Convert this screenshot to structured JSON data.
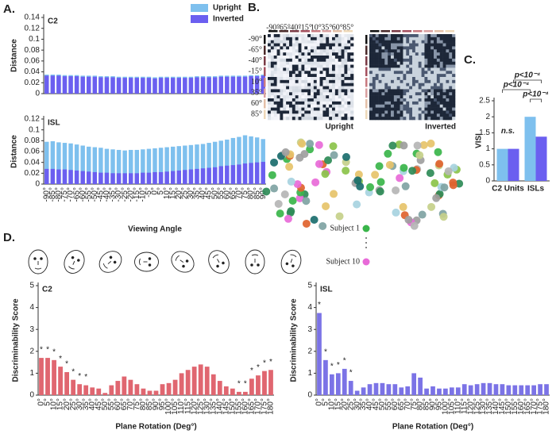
{
  "panel_labels": [
    "A.",
    "B.",
    "C.",
    "D."
  ],
  "chart_data": [
    {
      "type": "bar",
      "title": "C2",
      "ylabel": "Distance",
      "bar_mode": "overlay",
      "legend": "upper right",
      "series": [
        {
          "name": "Upright",
          "color": "#7ec0ee",
          "values": [
            0.035,
            0.035,
            0.035,
            0.034,
            0.034,
            0.034,
            0.033,
            0.033,
            0.033,
            0.032,
            0.032,
            0.032,
            0.031,
            0.031,
            0.031,
            0.031,
            0.031,
            0.031,
            0.03,
            0.031,
            0.031,
            0.031,
            0.031,
            0.031,
            0.031,
            0.032,
            0.032,
            0.032,
            0.032,
            0.033,
            0.033,
            0.033,
            0.033,
            0.033,
            0.034,
            0.034,
            0.035
          ]
        },
        {
          "name": "Inverted",
          "color": "#6b5ff0",
          "values": [
            0.033,
            0.033,
            0.033,
            0.032,
            0.032,
            0.032,
            0.031,
            0.031,
            0.031,
            0.03,
            0.03,
            0.03,
            0.029,
            0.029,
            0.029,
            0.029,
            0.029,
            0.029,
            0.028,
            0.029,
            0.029,
            0.029,
            0.029,
            0.029,
            0.029,
            0.03,
            0.03,
            0.03,
            0.03,
            0.031,
            0.031,
            0.031,
            0.031,
            0.031,
            0.032,
            0.032,
            0.033
          ]
        }
      ],
      "ylim": [
        0,
        0.14
      ],
      "yticks": [
        0,
        0.02,
        0.04,
        0.06,
        0.08,
        0.1,
        0.12,
        0.14
      ]
    },
    {
      "type": "bar",
      "title": "ISL",
      "ylabel": "Distance",
      "xlabel": "Viewing Angle",
      "bar_mode": "overlay",
      "categories": [
        "-90°",
        "-85°",
        "-80°",
        "-75°",
        "-70°",
        "-65°",
        "-60°",
        "-55°",
        "-50°",
        "-45°",
        "-40°",
        "-35°",
        "-30°",
        "-25°",
        "-20°",
        "-15°",
        "-10°",
        "-5°",
        "0°",
        "5°",
        "10°",
        "15°",
        "20°",
        "25°",
        "30°",
        "35°",
        "40°",
        "45°",
        "50°",
        "55°",
        "60°",
        "65°",
        "70°",
        "75°",
        "80°",
        "85°",
        "90°"
      ],
      "series": [
        {
          "color": "#7ec0ee",
          "values": [
            0.078,
            0.079,
            0.077,
            0.076,
            0.075,
            0.073,
            0.071,
            0.069,
            0.068,
            0.067,
            0.065,
            0.064,
            0.063,
            0.062,
            0.063,
            0.063,
            0.064,
            0.065,
            0.066,
            0.067,
            0.068,
            0.069,
            0.07,
            0.071,
            0.072,
            0.073,
            0.074,
            0.076,
            0.078,
            0.08,
            0.082,
            0.085,
            0.087,
            0.09,
            0.088,
            0.086,
            0.083
          ]
        },
        {
          "color": "#6b5ff0",
          "values": [
            0.028,
            0.028,
            0.027,
            0.027,
            0.026,
            0.025,
            0.024,
            0.023,
            0.022,
            0.021,
            0.021,
            0.02,
            0.02,
            0.02,
            0.02,
            0.02,
            0.021,
            0.021,
            0.022,
            0.022,
            0.023,
            0.024,
            0.025,
            0.026,
            0.027,
            0.028,
            0.029,
            0.03,
            0.031,
            0.033,
            0.034,
            0.035,
            0.036,
            0.038,
            0.039,
            0.04,
            0.041
          ]
        }
      ],
      "ylim": [
        0,
        0.12
      ],
      "yticks": [
        0,
        0.02,
        0.04,
        0.06,
        0.08,
        0.1,
        0.12
      ]
    },
    {
      "type": "bar",
      "ylabel": "VISI",
      "bar_mode": "group",
      "categories": [
        "C2 Units",
        "ISLs"
      ],
      "series": [
        {
          "color": "#7ec0ee",
          "values": [
            1.0,
            2.0
          ]
        },
        {
          "color": "#6b5ff0",
          "values": [
            1.0,
            1.38
          ]
        }
      ],
      "annotations": [
        "n.s.",
        "p<10⁻⁴",
        "p<10⁻⁴",
        "p<10⁻⁴"
      ],
      "ylim": [
        0,
        2.5
      ],
      "yticks": [
        0,
        0.5,
        1,
        1.5,
        2,
        2.5
      ]
    },
    {
      "type": "bar",
      "title": "C2",
      "ylabel": "Discriminability Score",
      "xlabel": "Plane Rotation (Deg°)",
      "color": "#e06670",
      "categories": [
        "0°",
        "5°",
        "10°",
        "15°",
        "20°",
        "25°",
        "30°",
        "35°",
        "40°",
        "45°",
        "50°",
        "55°",
        "60°",
        "65°",
        "70°",
        "75°",
        "80°",
        "85°",
        "90°",
        "95°",
        "100°",
        "105°",
        "110°",
        "115°",
        "120°",
        "125°",
        "130°",
        "135°",
        "140°",
        "145°",
        "150°",
        "155°",
        "160°",
        "165°",
        "170°",
        "175°",
        "180°"
      ],
      "values": [
        1.7,
        1.7,
        1.6,
        1.3,
        1.05,
        0.7,
        0.5,
        0.45,
        0.35,
        0.3,
        0.1,
        0.45,
        0.65,
        0.85,
        0.7,
        0.5,
        0.3,
        0.2,
        0.2,
        0.5,
        0.55,
        0.7,
        1.0,
        1.15,
        1.3,
        1.4,
        1.3,
        0.95,
        0.65,
        0.4,
        0.3,
        0.15,
        0.15,
        0.75,
        0.9,
        1.1,
        1.15
      ],
      "significance": [
        "*",
        "*",
        "*",
        "*",
        "*",
        "*",
        "*",
        "*",
        null,
        null,
        null,
        null,
        null,
        null,
        null,
        null,
        null,
        null,
        null,
        null,
        null,
        null,
        null,
        null,
        null,
        null,
        null,
        null,
        null,
        null,
        null,
        "*",
        "*",
        "*",
        "*",
        "*",
        "*"
      ],
      "ylim": [
        0,
        5
      ],
      "yticks": [
        0,
        1,
        2,
        3,
        4,
        5
      ]
    },
    {
      "type": "bar",
      "title": "ISL",
      "ylabel": "Discriminability Score",
      "xlabel": "Plane Rotation (Deg°)",
      "color": "#7b73e6",
      "categories": [
        "0°",
        "5°",
        "10°",
        "15°",
        "20°",
        "25°",
        "30°",
        "35°",
        "40°",
        "45°",
        "50°",
        "55°",
        "60°",
        "65°",
        "70°",
        "75°",
        "80°",
        "85°",
        "90°",
        "95°",
        "100°",
        "105°",
        "110°",
        "115°",
        "120°",
        "125°",
        "130°",
        "135°",
        "140°",
        "145°",
        "150°",
        "155°",
        "160°",
        "165°",
        "170°",
        "175°",
        "180°"
      ],
      "values": [
        3.75,
        1.6,
        0.95,
        1.0,
        1.2,
        0.65,
        0.2,
        0.35,
        0.5,
        0.55,
        0.55,
        0.5,
        0.5,
        0.35,
        0.4,
        1.0,
        0.8,
        0.3,
        0.4,
        0.3,
        0.3,
        0.35,
        0.35,
        0.5,
        0.45,
        0.5,
        0.55,
        0.55,
        0.5,
        0.5,
        0.45,
        0.45,
        0.45,
        0.45,
        0.45,
        0.5,
        0.5
      ],
      "significance": [
        "*",
        "*",
        "*",
        "*",
        "*",
        "*",
        null,
        null,
        null,
        null,
        null,
        null,
        null,
        null,
        null,
        null,
        null,
        null,
        null,
        null,
        null,
        null,
        null,
        null,
        null,
        null,
        null,
        null,
        null,
        null,
        null,
        null,
        null,
        null,
        null,
        null,
        null
      ],
      "ylim": [
        0,
        5
      ],
      "yticks": [
        0,
        1,
        2,
        3,
        4,
        5
      ]
    }
  ],
  "panel_b": {
    "angles": [
      "-90°",
      "-65°",
      "-40°",
      "-15°",
      "10°",
      "35°",
      "60°",
      "85°"
    ],
    "conditions": [
      "Upright",
      "Inverted"
    ],
    "subjects": [
      "Subject 1",
      "Subject 10"
    ]
  }
}
